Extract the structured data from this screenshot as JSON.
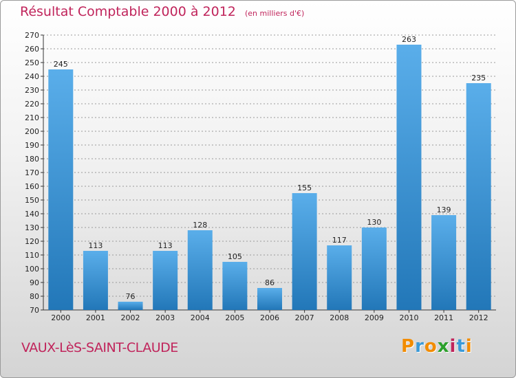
{
  "header": {
    "title": "Résultat Comptable 2000 à 2012",
    "subtitle": "(en milliers d'€)"
  },
  "footer": {
    "city": "VAUX-LèS-SAINT-CLAUDE",
    "logo": "Proxiti",
    "logo_colors": [
      "#f28c00",
      "#3a9ad9",
      "#f28c00",
      "#2ca02c",
      "#c0245b",
      "#3a9ad9",
      "#f28c00"
    ]
  },
  "colors": {
    "bar_top": "#5aaeea",
    "bar_bottom": "#2277b8",
    "grid": "#999999",
    "accent": "#c0245b"
  },
  "chart_data": {
    "type": "bar",
    "categories": [
      "2000",
      "2001",
      "2002",
      "2003",
      "2004",
      "2005",
      "2006",
      "2007",
      "2008",
      "2009",
      "2010",
      "2011",
      "2012"
    ],
    "values": [
      245,
      113,
      76,
      113,
      128,
      105,
      86,
      155,
      117,
      130,
      263,
      139,
      235
    ],
    "ylim": [
      70,
      270
    ],
    "ytick_step": 10,
    "grid": true,
    "legend": "none"
  }
}
